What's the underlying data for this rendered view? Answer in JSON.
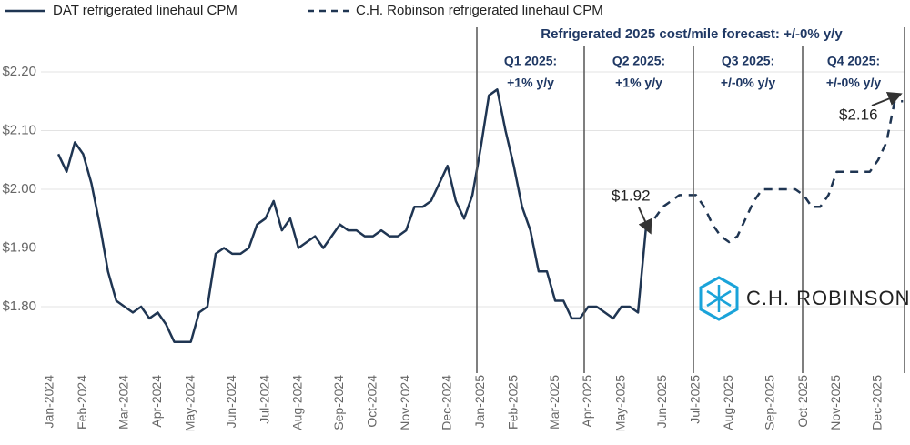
{
  "chart_data": {
    "type": "line",
    "categories": [
      "Jan-2024",
      null,
      null,
      null,
      "Feb-2024",
      null,
      null,
      null,
      null,
      "Mar-2024",
      null,
      null,
      null,
      "Apr-2024",
      null,
      null,
      null,
      "May-2024",
      null,
      null,
      null,
      null,
      "Jun-2024",
      null,
      null,
      null,
      "Jul-2024",
      null,
      null,
      null,
      "Aug-2024",
      null,
      null,
      null,
      null,
      "Sep-2024",
      null,
      null,
      null,
      "Oct-2024",
      null,
      null,
      null,
      "Nov-2024",
      null,
      null,
      null,
      null,
      "Dec-2024",
      null,
      null,
      null,
      "Jan-2025",
      null,
      null,
      null,
      "Feb-2025",
      null,
      null,
      null,
      null,
      "Mar-2025",
      null,
      null,
      null,
      "Apr-2025",
      null,
      null,
      null,
      "May-2025",
      null,
      null,
      null,
      null,
      "Jun-2025",
      null,
      null,
      null,
      "Jul-2025",
      null,
      null,
      null,
      "Aug-2025",
      null,
      null,
      null,
      null,
      "Sep-2025",
      null,
      null,
      null,
      "Oct-2025",
      null,
      null,
      null,
      "Nov-2025",
      null,
      null,
      null,
      null,
      "Dec-2025",
      null,
      null,
      null
    ],
    "series": [
      {
        "name": "DAT refrigerated linehaul CPM",
        "color": "#1f3552",
        "dashed": false,
        "values": [
          null,
          2.06,
          2.03,
          2.08,
          2.06,
          2.01,
          1.94,
          1.86,
          1.81,
          1.8,
          1.79,
          1.8,
          1.78,
          1.79,
          1.77,
          1.74,
          1.74,
          1.74,
          1.79,
          1.8,
          1.89,
          1.9,
          1.89,
          1.89,
          1.9,
          1.94,
          1.95,
          1.98,
          1.93,
          1.95,
          1.9,
          1.91,
          1.92,
          1.9,
          1.92,
          1.94,
          1.93,
          1.93,
          1.92,
          1.92,
          1.93,
          1.92,
          1.92,
          1.93,
          1.97,
          1.97,
          1.98,
          2.01,
          2.04,
          1.98,
          1.95,
          1.99,
          2.07,
          2.16,
          2.17,
          2.1,
          2.04,
          1.97,
          1.93,
          1.86,
          1.86,
          1.81,
          1.81,
          1.78,
          1.78,
          1.8,
          1.8,
          1.79,
          1.78,
          1.8,
          1.8,
          1.79,
          1.94,
          null,
          null,
          null,
          null,
          null,
          null,
          null,
          null,
          null,
          null,
          null,
          null,
          null,
          null,
          null,
          null,
          null,
          null,
          null,
          null,
          null,
          null,
          null,
          null,
          null,
          null,
          null,
          null,
          null,
          null,
          null
        ]
      },
      {
        "name": "C.H. Robinson refrigerated linehaul CPM",
        "color": "#1f3552",
        "dashed": true,
        "values": [
          null,
          null,
          null,
          null,
          null,
          null,
          null,
          null,
          null,
          null,
          null,
          null,
          null,
          null,
          null,
          null,
          null,
          null,
          null,
          null,
          null,
          null,
          null,
          null,
          null,
          null,
          null,
          null,
          null,
          null,
          null,
          null,
          null,
          null,
          null,
          null,
          null,
          null,
          null,
          null,
          null,
          null,
          null,
          null,
          null,
          null,
          null,
          null,
          null,
          null,
          null,
          null,
          null,
          null,
          null,
          null,
          null,
          null,
          null,
          null,
          null,
          null,
          null,
          null,
          null,
          null,
          null,
          null,
          null,
          null,
          null,
          null,
          1.93,
          1.95,
          1.97,
          1.98,
          1.99,
          1.99,
          1.99,
          1.97,
          1.94,
          1.92,
          1.91,
          1.92,
          1.95,
          1.98,
          2.0,
          2.0,
          2.0,
          2.0,
          2.0,
          1.99,
          1.97,
          1.97,
          1.99,
          2.03,
          2.03,
          2.03,
          2.03,
          2.03,
          2.05,
          2.08,
          2.15,
          2.15
        ]
      }
    ],
    "ylim": [
      1.7,
      2.28
    ],
    "yticks": [
      {
        "value": 1.8,
        "label": "$1.80"
      },
      {
        "value": 1.9,
        "label": "$1.90"
      },
      {
        "value": 2.0,
        "label": "$2.00"
      },
      {
        "value": 2.1,
        "label": "$2.10"
      },
      {
        "value": 2.2,
        "label": "$2.20"
      }
    ],
    "grid": true,
    "legend": "top-left",
    "header": "Refrigerated 2025 cost/mile forecast: +/-0% y/y",
    "quarters": [
      {
        "title": "Q1 2025:",
        "change": "+1% y/y"
      },
      {
        "title": "Q2 2025:",
        "change": "+1% y/y"
      },
      {
        "title": "Q3 2025:",
        "change": "+/-0% y/y"
      },
      {
        "title": "Q4 2025:",
        "change": "+/-0% y/y"
      }
    ],
    "callouts": [
      "$1.92",
      "$2.16"
    ],
    "logo": "C.H. ROBINSON"
  }
}
